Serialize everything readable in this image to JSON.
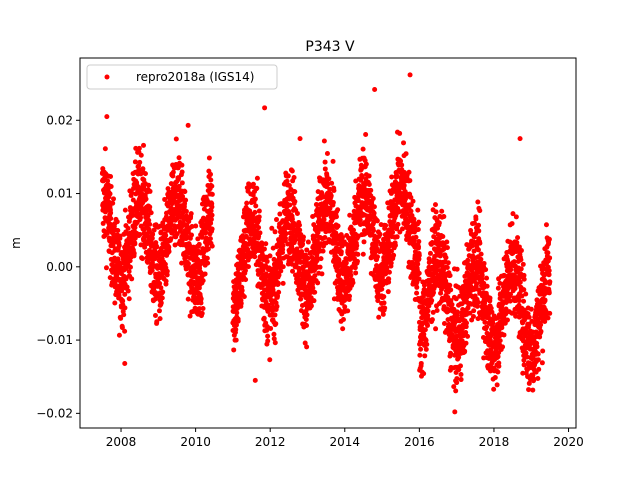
{
  "chart_data": {
    "type": "scatter",
    "title": "P343 V",
    "xlabel": "",
    "ylabel": "m",
    "xlim": [
      2006.9,
      2020.2
    ],
    "ylim": [
      -0.022,
      0.0285
    ],
    "xticks": [
      2008,
      2010,
      2012,
      2014,
      2016,
      2018,
      2020
    ],
    "xtick_labels": [
      "2008",
      "2010",
      "2012",
      "2014",
      "2016",
      "2018",
      "2020"
    ],
    "yticks": [
      -0.02,
      -0.01,
      0.0,
      0.01,
      0.02
    ],
    "ytick_labels": [
      "−0.02",
      "−0.01",
      "0.00",
      "0.01",
      "0.02"
    ],
    "grid": false,
    "legend": {
      "position": "top-left",
      "entries": [
        "repro2018a (IGS14)"
      ]
    },
    "series": [
      {
        "name": "repro2018a (IGS14)",
        "color": "#ff0000",
        "marker": "circle",
        "segments": [
          {
            "start": 2007.5,
            "end": 2010.45,
            "base": 0.004,
            "trend": 0.0,
            "amp": 0.0055,
            "noise": 0.0045
          },
          {
            "start": 2011.0,
            "end": 2019.5,
            "base": 0.0,
            "trend": 0.0012,
            "amp": 0.0055,
            "noise": 0.0045
          }
        ],
        "phase_year": 0.25,
        "sample_step_days": 1,
        "noted_points": [
          {
            "x": 2007.62,
            "y": 0.0205
          },
          {
            "x": 2011.85,
            "y": 0.0217
          },
          {
            "x": 2015.75,
            "y": 0.0262
          },
          {
            "x": 2014.8,
            "y": 0.0242
          },
          {
            "x": 2008.1,
            "y": -0.0132
          },
          {
            "x": 2011.6,
            "y": -0.0155
          },
          {
            "x": 2016.95,
            "y": -0.0198
          },
          {
            "x": 2017.0,
            "y": -0.0158
          },
          {
            "x": 2009.8,
            "y": 0.0193
          },
          {
            "x": 2012.8,
            "y": 0.0175
          },
          {
            "x": 2018.7,
            "y": 0.0175
          }
        ]
      }
    ]
  }
}
